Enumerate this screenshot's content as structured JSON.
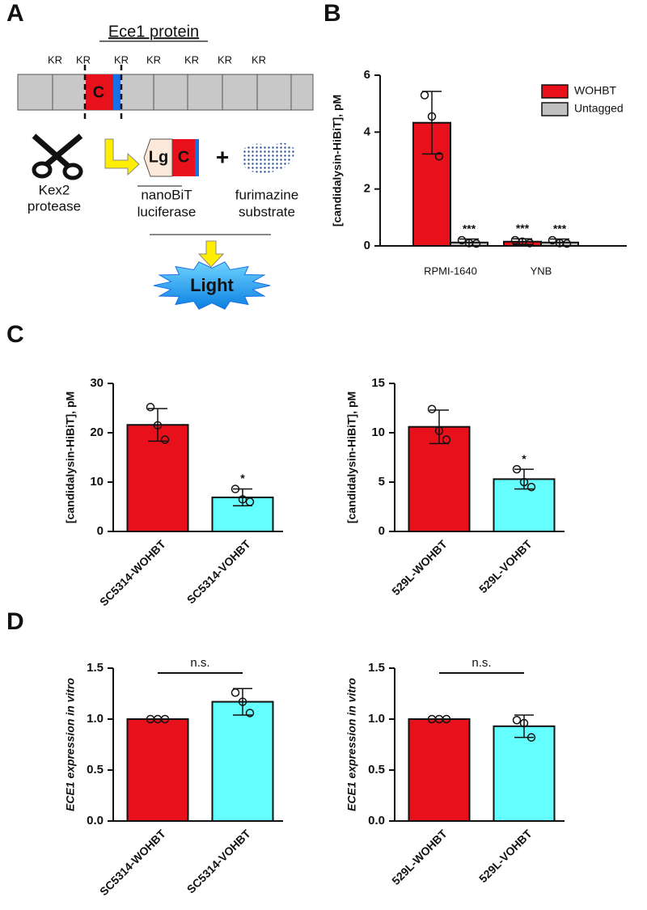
{
  "panel_labels": [
    "A",
    "B",
    "C",
    "D"
  ],
  "diagram": {
    "title": "Ece1 protein",
    "kr": [
      "KR",
      "KR",
      "KR",
      "KR",
      "KR",
      "KR",
      "KR"
    ],
    "peptide": "C",
    "protease": [
      "Kex2",
      "protease"
    ],
    "lg": "Lg",
    "c": "C",
    "plus": "+",
    "luciferase": [
      "nanoBiT",
      "luciferase"
    ],
    "substrate": [
      "furimazine",
      "substrate"
    ],
    "light": "Light"
  },
  "chart_data": [
    {
      "type": "bar",
      "ylabel": "[candidalysin-HiBiT], pM",
      "categories": [
        "RPMI-1640",
        "YNB"
      ],
      "series": [
        {
          "name": "WOHBT",
          "color": "#e8101a",
          "values": [
            4.33,
            0.15
          ],
          "errors": [
            1.1,
            0.1
          ],
          "points": [
            [
              5.3,
              4.55,
              3.15
            ],
            [
              0.2,
              0.15,
              0.1
            ]
          ],
          "significance": [
            null,
            "***"
          ]
        },
        {
          "name": "Untagged",
          "color": "#c0c0c0",
          "values": [
            0.12,
            0.12
          ],
          "errors": [
            0.12,
            0.12
          ],
          "points": [
            [
              0.2,
              0.1,
              0.08
            ],
            [
              0.2,
              0.1,
              0.08
            ]
          ],
          "significance": [
            "***",
            "***"
          ]
        }
      ],
      "ylim": [
        0,
        6
      ],
      "yticks": [
        0,
        2,
        4,
        6
      ],
      "legend": "upper right"
    },
    {
      "type": "bar",
      "ylabel": "[candidalysin-HiBiT], pM",
      "categories": [
        "SC5314-WOHBT",
        "SC5314-VOHBT"
      ],
      "values": [
        21.6,
        6.9
      ],
      "errors": [
        3.3,
        1.7
      ],
      "colors": [
        "#e8101a",
        "#66ffff"
      ],
      "points": [
        [
          25.2,
          21.5,
          18.6
        ],
        [
          8.6,
          6.5,
          6.0
        ]
      ],
      "significance": [
        null,
        "*"
      ],
      "ylim": [
        0,
        30
      ],
      "yticks": [
        0,
        10,
        20,
        30
      ]
    },
    {
      "type": "bar",
      "ylabel": "[candidalysin-HiBiT], pM",
      "categories": [
        "529L-WOHBT",
        "529L-VOHBT"
      ],
      "values": [
        10.6,
        5.3
      ],
      "errors": [
        1.7,
        1.0
      ],
      "colors": [
        "#e8101a",
        "#66ffff"
      ],
      "points": [
        [
          12.4,
          10.2,
          9.3
        ],
        [
          6.3,
          5.0,
          4.5
        ]
      ],
      "significance": [
        null,
        "*"
      ],
      "ylim": [
        0,
        15
      ],
      "yticks": [
        0,
        5,
        10,
        15
      ]
    },
    {
      "type": "bar",
      "ylabel": "ECE1 expression in vitro",
      "categories": [
        "SC5314-WOHBT",
        "SC5314-VOHBT"
      ],
      "values": [
        1.0,
        1.17
      ],
      "errors": [
        0,
        0.13
      ],
      "colors": [
        "#e8101a",
        "#66ffff"
      ],
      "points": [
        [
          1.0,
          1.0,
          1.0
        ],
        [
          1.26,
          1.17,
          1.06
        ]
      ],
      "bracket": "n.s.",
      "ylim": [
        0,
        1.5
      ],
      "yticks": [
        {
          "value": 0,
          "label": "0.0"
        },
        {
          "value": 0.5,
          "label": "0.5"
        },
        {
          "value": 1,
          "label": "1.0"
        },
        {
          "value": 1.5,
          "label": "1.5"
        }
      ]
    },
    {
      "type": "bar",
      "ylabel": "ECE1 expression in vitro",
      "categories": [
        "529L-WOHBT",
        "529L-VOHBT"
      ],
      "values": [
        1.0,
        0.93
      ],
      "errors": [
        0,
        0.11
      ],
      "colors": [
        "#e8101a",
        "#66ffff"
      ],
      "points": [
        [
          1.0,
          1.0,
          1.0
        ],
        [
          0.99,
          0.96,
          0.82
        ]
      ],
      "bracket": "n.s.",
      "ylim": [
        0,
        1.5
      ],
      "yticks": [
        {
          "value": 0,
          "label": "0.0"
        },
        {
          "value": 0.5,
          "label": "0.5"
        },
        {
          "value": 1,
          "label": "1.0"
        },
        {
          "value": 1.5,
          "label": "1.5"
        }
      ]
    }
  ]
}
